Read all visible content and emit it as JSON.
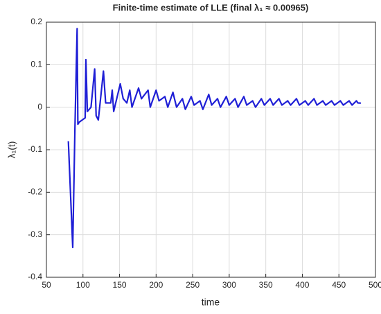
{
  "chart_data": {
    "type": "line",
    "title": "Finite-time estimate of LLE (final λ₁ ≈ 0.00965)",
    "x_label": "time",
    "y_label": "λ₁(t)",
    "x": [
      80,
      86,
      89,
      92,
      93,
      95,
      103,
      104,
      106,
      111,
      116,
      118,
      121,
      128,
      131,
      138,
      140,
      142,
      151,
      155,
      160,
      164,
      167,
      176,
      180,
      189,
      192,
      200,
      204,
      212,
      216,
      223,
      228,
      236,
      240,
      248,
      252,
      260,
      264,
      272,
      276,
      284,
      288,
      296,
      300,
      308,
      312,
      320,
      324,
      332,
      336,
      344,
      348,
      356,
      360,
      368,
      372,
      380,
      384,
      392,
      396,
      404,
      408,
      416,
      420,
      428,
      432,
      440,
      444,
      452,
      456,
      464,
      468,
      474,
      476,
      480
    ],
    "series": [
      {
        "name": "λ₁(t)",
        "color": "#1f1fd6",
        "values": [
          -0.08,
          -0.33,
          -0.05,
          0.185,
          -0.04,
          -0.035,
          -0.025,
          0.112,
          -0.01,
          0.0,
          0.09,
          -0.02,
          -0.03,
          0.085,
          0.01,
          0.01,
          0.04,
          -0.01,
          0.055,
          0.02,
          0.01,
          0.04,
          0.0,
          0.045,
          0.02,
          0.04,
          0.0,
          0.04,
          0.015,
          0.025,
          0.0,
          0.035,
          0.0,
          0.02,
          -0.005,
          0.025,
          0.005,
          0.015,
          -0.005,
          0.03,
          0.005,
          0.02,
          0.0,
          0.025,
          0.005,
          0.02,
          0.0,
          0.025,
          0.005,
          0.015,
          0.0,
          0.02,
          0.005,
          0.02,
          0.005,
          0.02,
          0.005,
          0.015,
          0.005,
          0.02,
          0.005,
          0.015,
          0.005,
          0.02,
          0.005,
          0.015,
          0.005,
          0.015,
          0.005,
          0.015,
          0.005,
          0.015,
          0.005,
          0.015,
          0.01,
          0.00965
        ]
      }
    ],
    "xlim": [
      50,
      500
    ],
    "xticks": [
      50,
      100,
      150,
      200,
      250,
      300,
      350,
      400,
      450,
      500
    ],
    "ylim": [
      -0.4,
      0.2
    ],
    "yticks": [
      -0.4,
      -0.3,
      -0.2,
      -0.1,
      0,
      0.1,
      0.2
    ],
    "grid": true
  }
}
